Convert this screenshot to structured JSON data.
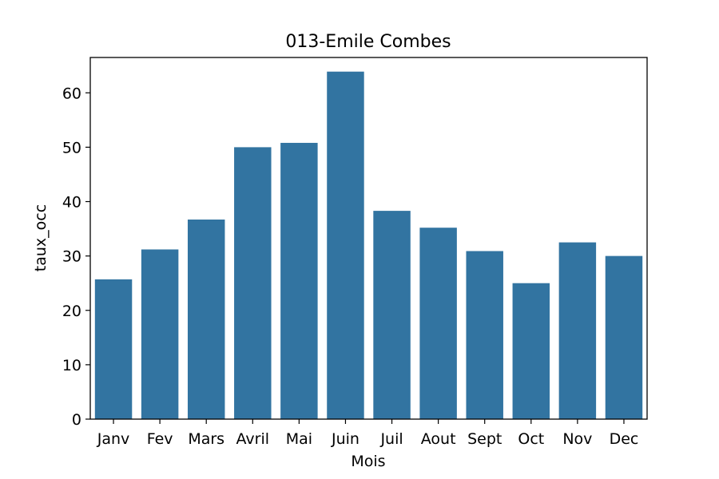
{
  "chart_data": {
    "type": "bar",
    "title": "013-Emile Combes",
    "xlabel": "Mois",
    "ylabel": "taux_occ",
    "categories": [
      "Janv",
      "Fev",
      "Mars",
      "Avril",
      "Mai",
      "Juin",
      "Juil",
      "Aout",
      "Sept",
      "Oct",
      "Nov",
      "Dec"
    ],
    "values": [
      25.7,
      31.2,
      36.7,
      50.0,
      50.8,
      63.9,
      38.3,
      35.2,
      30.9,
      25.0,
      32.5,
      30.0
    ],
    "ylim": [
      0,
      66.5
    ],
    "yticks": [
      0,
      10,
      20,
      30,
      40,
      50,
      60
    ],
    "bar_color": "#3274a1",
    "grid": false,
    "legend": "none"
  }
}
